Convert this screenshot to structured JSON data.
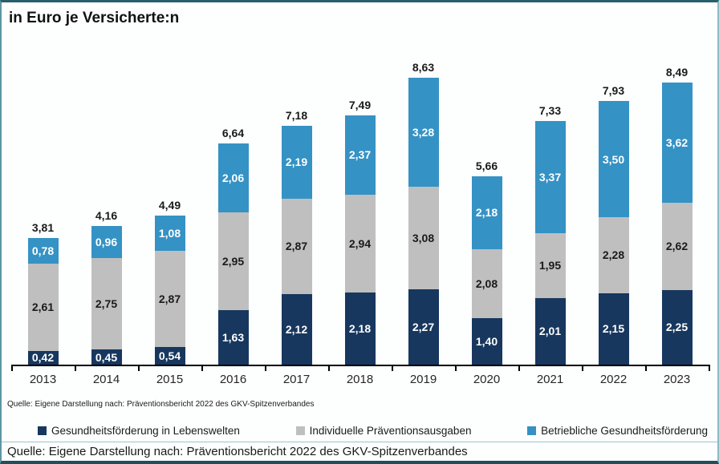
{
  "title": "in Euro je Versicherte:n",
  "source_small": "Quelle: Eigene Darstellung nach: Präventionsbericht 2022 des GKV-Spitzenverbandes",
  "source_footer": "Quelle: Eigene Darstellung nach: Präventionsbericht 2022 des GKV-Spitzenverbandes",
  "colors": {
    "series_dark_blue": "#17375E",
    "series_gray": "#BFBFBF",
    "series_light_blue": "#3592C4",
    "axis": "#000000",
    "frame_border": "#26606E"
  },
  "chart_data": {
    "type": "bar",
    "subtype": "stacked",
    "title": "in Euro je Versicherte:n",
    "xlabel": "",
    "ylabel": "Euro je Versicherte:n",
    "ylim": [
      0,
      9
    ],
    "grid": false,
    "legend_position": "bottom",
    "decimal_separator": ",",
    "categories": [
      "2013",
      "2014",
      "2015",
      "2016",
      "2017",
      "2018",
      "2019",
      "2020",
      "2021",
      "2022",
      "2023"
    ],
    "series": [
      {
        "name": "Gesundheitsförderung in Lebenswelten",
        "color": "#17375E",
        "label_color": "#FFFFFF",
        "values": [
          0.42,
          0.45,
          0.54,
          1.63,
          2.12,
          2.18,
          2.27,
          1.4,
          2.01,
          2.15,
          2.25
        ]
      },
      {
        "name": "Individuelle Präventionsausgaben",
        "color": "#BFBFBF",
        "label_color": "#1A1A1A",
        "values": [
          2.61,
          2.75,
          2.87,
          2.95,
          2.87,
          2.94,
          3.08,
          2.08,
          1.95,
          2.28,
          2.62
        ]
      },
      {
        "name": "Betriebliche Gesundheitsförderung",
        "color": "#3592C4",
        "label_color": "#FFFFFF",
        "values": [
          0.78,
          0.96,
          1.08,
          2.06,
          2.19,
          2.37,
          3.28,
          2.18,
          3.37,
          3.5,
          3.62
        ]
      }
    ],
    "totals": [
      3.81,
      4.16,
      4.49,
      6.64,
      7.18,
      7.49,
      8.63,
      5.66,
      7.33,
      7.93,
      8.49
    ]
  }
}
